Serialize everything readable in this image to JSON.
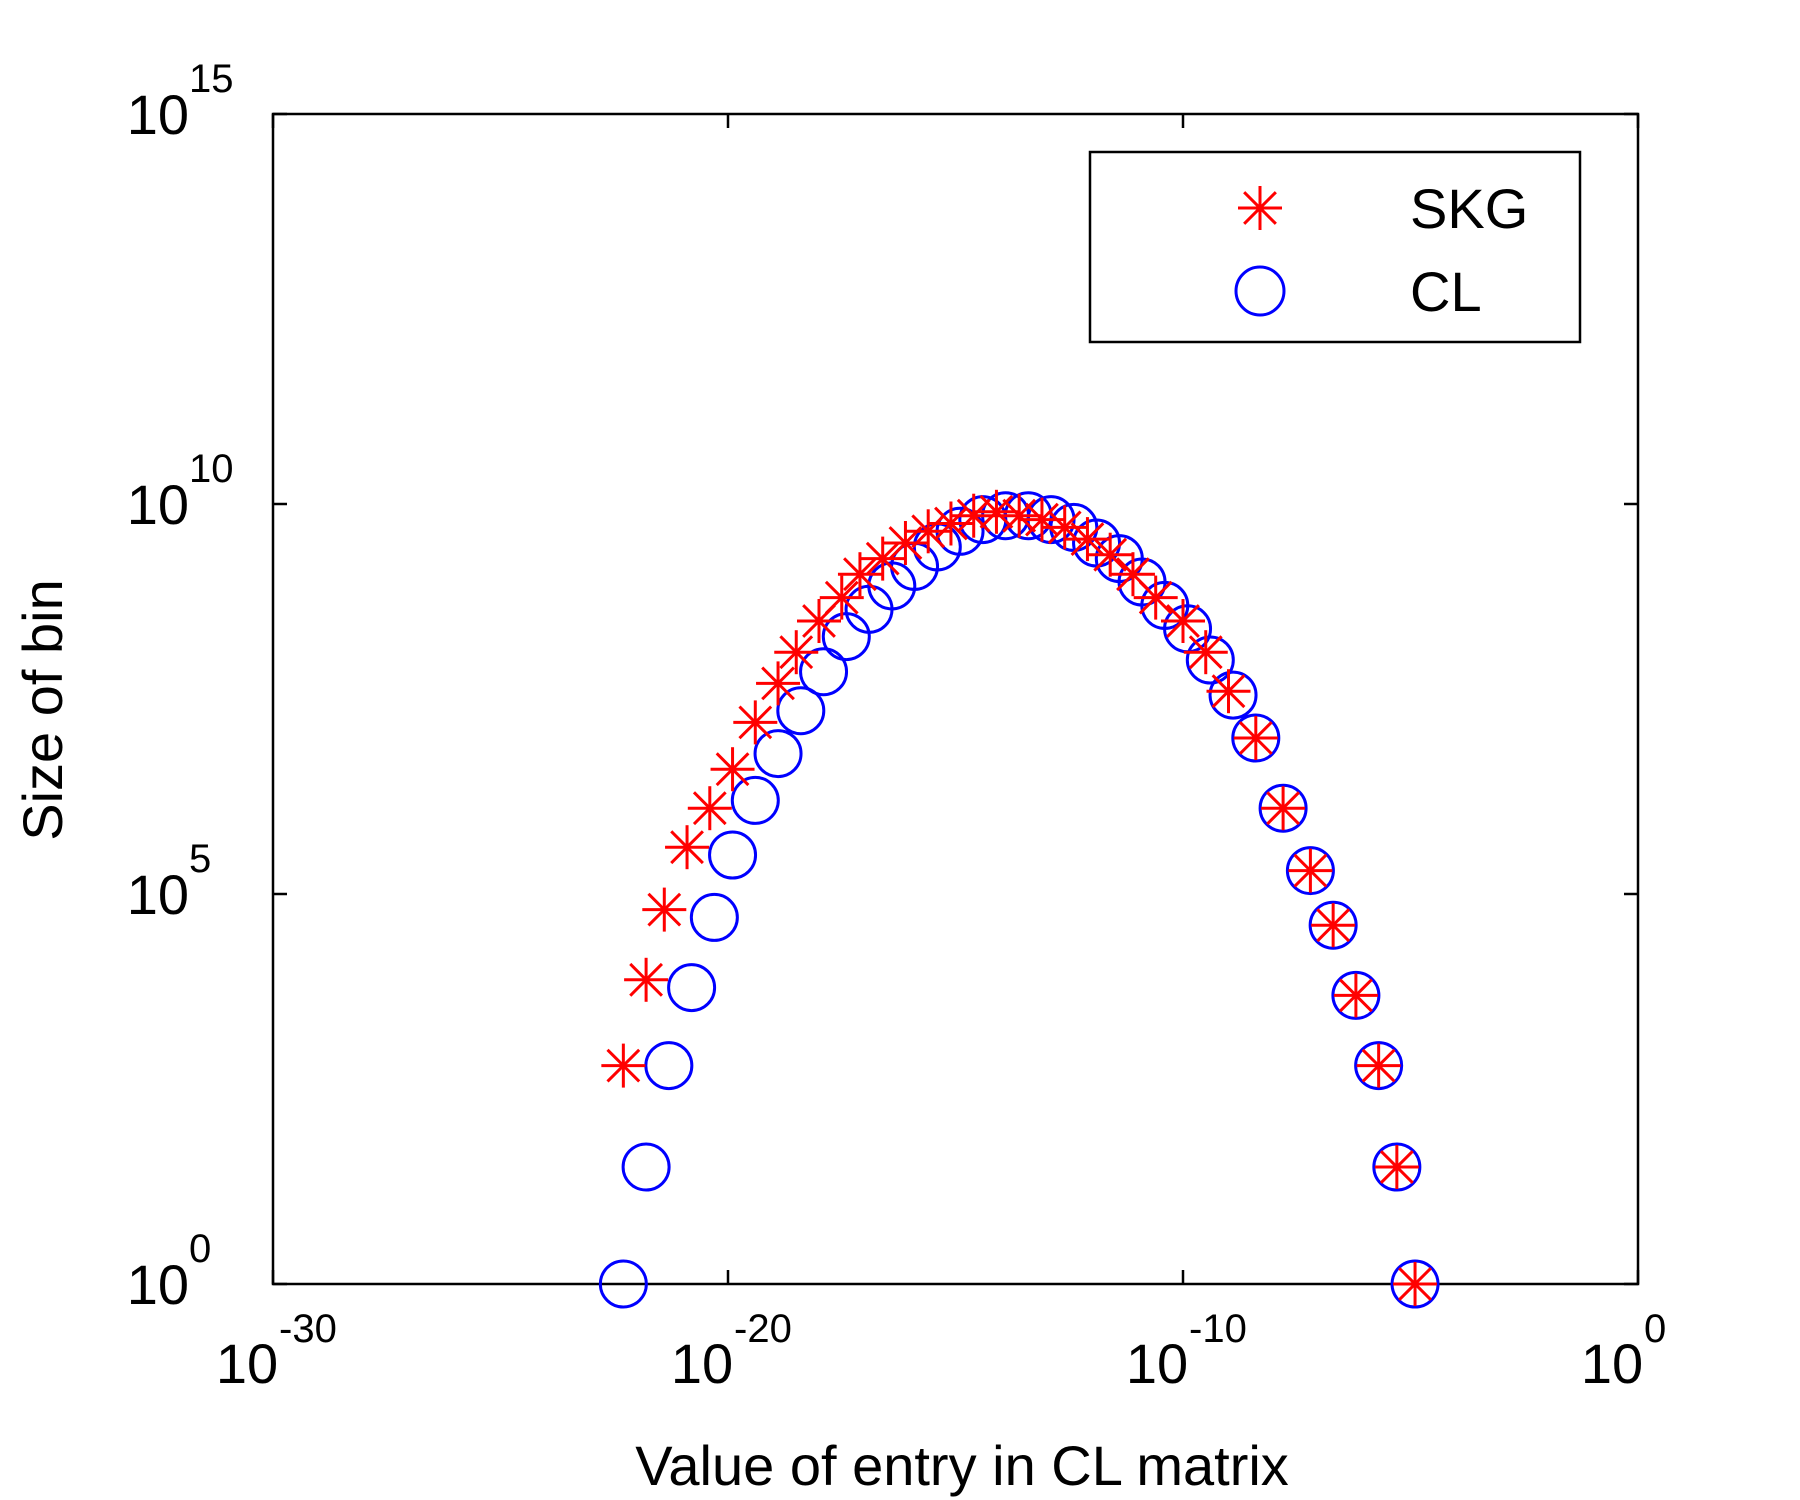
{
  "chart_data": {
    "type": "scatter",
    "title": "",
    "xlabel": "Value of entry in CL matrix",
    "ylabel": "Size of bin",
    "xscale": "log",
    "yscale": "log",
    "xlim_exp": [
      -30,
      0
    ],
    "ylim_exp": [
      0,
      15
    ],
    "xticks": [
      {
        "exp": -30,
        "base": "10",
        "sup": "-30"
      },
      {
        "exp": -20,
        "base": "10",
        "sup": "-20"
      },
      {
        "exp": -10,
        "base": "10",
        "sup": "-10"
      },
      {
        "exp": 0,
        "base": "10",
        "sup": "0"
      }
    ],
    "yticks": [
      {
        "exp": 0,
        "base": "10",
        "sup": "0"
      },
      {
        "exp": 5,
        "base": "10",
        "sup": "5"
      },
      {
        "exp": 10,
        "base": "10",
        "sup": "10"
      },
      {
        "exp": 15,
        "base": "10",
        "sup": "15"
      }
    ],
    "legend_position": "top-right",
    "series": [
      {
        "name": "SKG",
        "marker": "asterisk",
        "color": "#ff0000",
        "points_log10": [
          [
            -22.3,
            2.8
          ],
          [
            -21.8,
            3.9
          ],
          [
            -21.4,
            4.8
          ],
          [
            -20.9,
            5.6
          ],
          [
            -20.4,
            6.1
          ],
          [
            -19.9,
            6.6
          ],
          [
            -19.4,
            7.2
          ],
          [
            -18.9,
            7.7
          ],
          [
            -18.5,
            8.1
          ],
          [
            -18.0,
            8.5
          ],
          [
            -17.5,
            8.8
          ],
          [
            -17.1,
            9.1
          ],
          [
            -16.6,
            9.3
          ],
          [
            -16.1,
            9.5
          ],
          [
            -15.6,
            9.65
          ],
          [
            -15.1,
            9.75
          ],
          [
            -14.6,
            9.85
          ],
          [
            -14.1,
            9.9
          ],
          [
            -13.6,
            9.85
          ],
          [
            -13.1,
            9.8
          ],
          [
            -12.6,
            9.7
          ],
          [
            -12.1,
            9.55
          ],
          [
            -11.6,
            9.35
          ],
          [
            -11.1,
            9.1
          ],
          [
            -10.6,
            8.8
          ],
          [
            -10.0,
            8.5
          ],
          [
            -9.5,
            8.1
          ],
          [
            -9.0,
            7.6
          ],
          [
            -8.4,
            7.0
          ],
          [
            -7.8,
            6.1
          ],
          [
            -7.2,
            5.3
          ],
          [
            -6.7,
            4.6
          ],
          [
            -6.2,
            3.7
          ],
          [
            -5.7,
            2.8
          ],
          [
            -5.3,
            1.5
          ],
          [
            -4.9,
            0.0
          ]
        ]
      },
      {
        "name": "CL",
        "marker": "circle",
        "color": "#0000ff",
        "points_log10": [
          [
            -22.3,
            0.0
          ],
          [
            -21.8,
            1.5
          ],
          [
            -21.3,
            2.8
          ],
          [
            -20.8,
            3.8
          ],
          [
            -20.3,
            4.7
          ],
          [
            -19.9,
            5.5
          ],
          [
            -19.4,
            6.2
          ],
          [
            -18.9,
            6.8
          ],
          [
            -18.4,
            7.35
          ],
          [
            -17.9,
            7.85
          ],
          [
            -17.4,
            8.3
          ],
          [
            -16.9,
            8.65
          ],
          [
            -16.4,
            8.95
          ],
          [
            -15.9,
            9.2
          ],
          [
            -15.4,
            9.45
          ],
          [
            -14.9,
            9.65
          ],
          [
            -14.4,
            9.8
          ],
          [
            -13.9,
            9.85
          ],
          [
            -13.4,
            9.85
          ],
          [
            -12.9,
            9.8
          ],
          [
            -12.4,
            9.7
          ],
          [
            -11.9,
            9.5
          ],
          [
            -11.4,
            9.3
          ],
          [
            -10.9,
            9.0
          ],
          [
            -10.4,
            8.7
          ],
          [
            -9.9,
            8.4
          ],
          [
            -9.4,
            8.0
          ],
          [
            -8.9,
            7.55
          ],
          [
            -8.4,
            7.0
          ],
          [
            -7.8,
            6.1
          ],
          [
            -7.2,
            5.3
          ],
          [
            -6.7,
            4.6
          ],
          [
            -6.2,
            3.7
          ],
          [
            -5.7,
            2.8
          ],
          [
            -5.3,
            1.5
          ],
          [
            -4.9,
            0.0
          ]
        ]
      }
    ]
  }
}
